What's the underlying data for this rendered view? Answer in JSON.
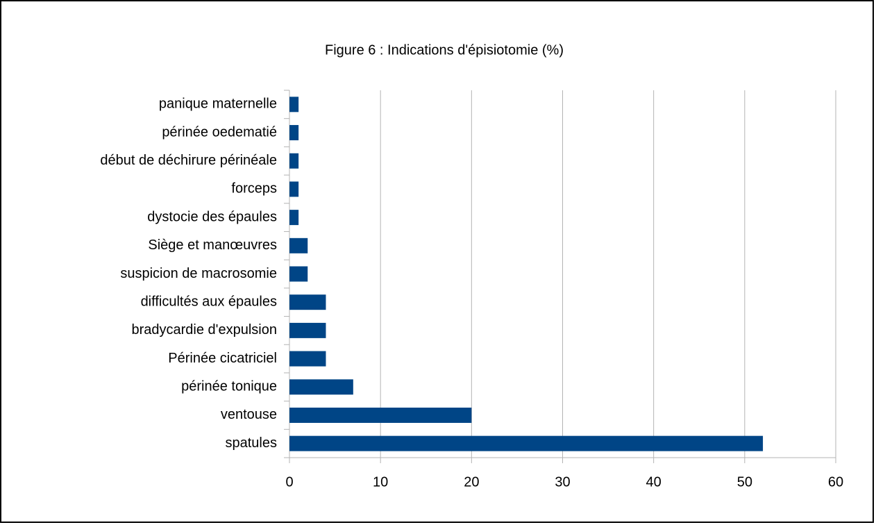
{
  "chart_data": {
    "type": "bar",
    "orientation": "horizontal",
    "title": "Figure 6 : Indications d'épisiotomie (%)",
    "categories": [
      "spatules",
      "ventouse",
      "périnée tonique",
      "Périnée cicatriciel",
      "bradycardie d'expulsion",
      "difficultés aux épaules",
      "suspicion de macrosomie ",
      "Siège et manœuvres",
      "dystocie des épaules",
      "forceps",
      "début de déchirure périnéale",
      "périnée oedematié",
      "panique maternelle"
    ],
    "values": [
      52,
      20,
      7,
      4,
      4,
      4,
      2,
      2,
      1,
      1,
      1,
      1,
      1
    ],
    "color": "#004586",
    "xlim": [
      0,
      60
    ],
    "xticks": [
      0,
      10,
      20,
      30,
      40,
      50,
      60
    ],
    "grid": true
  }
}
